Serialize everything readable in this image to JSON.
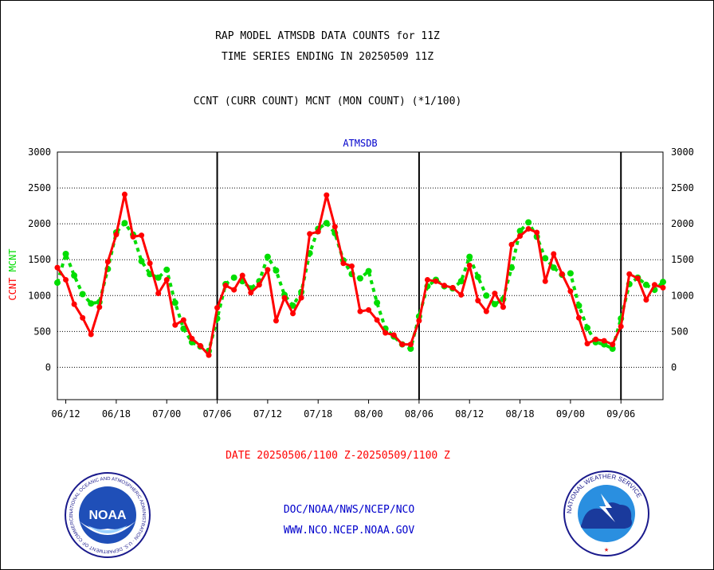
{
  "header": {
    "title_line1": "RAP MODEL ATMSDB DATA COUNTS for 11Z",
    "title_line2": "TIME SERIES ENDING IN 20250509 11Z",
    "subtitle": "CCNT (CURR COUNT) MCNT (MON COUNT) (*1/100)"
  },
  "footer": {
    "date_range": "DATE 20250506/1100 Z-20250509/1100 Z",
    "org_line": "DOC/NOAA/NWS/NCEP/NCO",
    "url_line": "WWW.NCO.NCEP.NOAA.GOV"
  },
  "logos": {
    "noaa_center": "NOAA",
    "noaa_ring": "NATIONAL OCEANIC AND ATMOSPHERIC ADMINISTRATION · U.S. DEPARTMENT OF COMMERCE",
    "nws_ring": "NATIONAL WEATHER SERVICE"
  },
  "colors": {
    "ccnt": "#ff0000",
    "mcnt": "#00dd00",
    "label_blue": "#0000cc"
  },
  "chart_data": {
    "type": "line",
    "title": "ATMSDB",
    "ylabel_series": [
      "CCNT",
      "MCNT"
    ],
    "ylim": [
      -450,
      3000
    ],
    "y_ticks": [
      0,
      500,
      1000,
      1500,
      2000,
      2500,
      3000
    ],
    "x_tick_labels": [
      "06/12",
      "06/18",
      "07/00",
      "07/06",
      "07/12",
      "07/18",
      "08/00",
      "08/06",
      "08/12",
      "08/18",
      "09/00",
      "09/06"
    ],
    "grid": "horizontal dotted at y ticks; vertical solid lines at day boundaries",
    "series": [
      {
        "name": "CCNT",
        "color": "#ff0000",
        "values": [
          1390,
          1220,
          880,
          690,
          460,
          840,
          1470,
          1850,
          2410,
          1820,
          1840,
          1450,
          1030,
          1220,
          590,
          660,
          400,
          300,
          170,
          830,
          1140,
          1080,
          1280,
          1040,
          1150,
          1360,
          650,
          970,
          750,
          970,
          1860,
          1890,
          2400,
          1960,
          1450,
          1410,
          780,
          800,
          660,
          480,
          450,
          320,
          320,
          650,
          1220,
          1200,
          1140,
          1110,
          1010,
          1420,
          930,
          780,
          1030,
          840,
          1710,
          1830,
          1930,
          1880,
          1200,
          1580,
          1300,
          1060,
          690,
          330,
          390,
          370,
          320,
          570,
          1300,
          1240,
          940,
          1150,
          1110
        ]
      },
      {
        "name": "MCNT",
        "color": "#00dd00",
        "values": [
          1180,
          1580,
          1280,
          1020,
          890,
          910,
          1370,
          1880,
          2010,
          1850,
          1480,
          1300,
          1250,
          1360,
          900,
          540,
          350,
          290,
          230,
          680,
          1160,
          1250,
          1200,
          1100,
          1200,
          1540,
          1350,
          1010,
          860,
          1050,
          1590,
          1930,
          2010,
          1870,
          1490,
          1300,
          1240,
          1340,
          900,
          540,
          430,
          320,
          260,
          710,
          1130,
          1220,
          1130,
          1100,
          1200,
          1540,
          1260,
          1000,
          880,
          950,
          1390,
          1900,
          2020,
          1820,
          1520,
          1390,
          1290,
          1310,
          860,
          550,
          350,
          320,
          260,
          680,
          1160,
          1250,
          1150,
          1080,
          1190
        ]
      }
    ]
  }
}
